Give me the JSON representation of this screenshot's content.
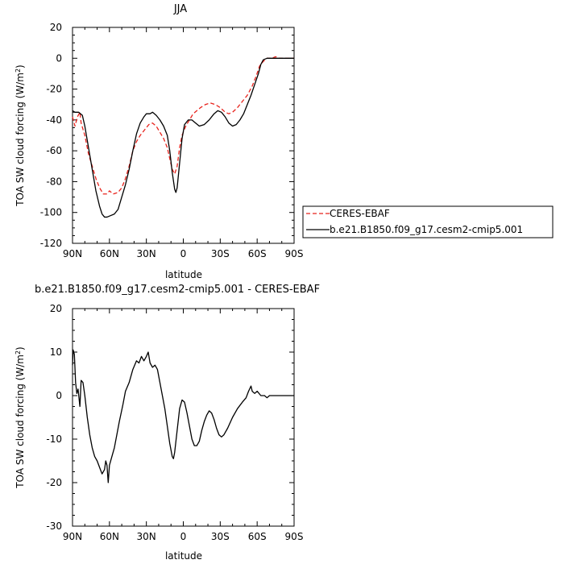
{
  "chart_data": [
    {
      "type": "line",
      "title": "JJA",
      "xlabel": "latitude",
      "ylabel": "TOA SW cloud forcing (W/m²)",
      "ylabel_main": "TOA SW cloud forcing (W/m",
      "ylabel_sup": "2",
      "ylabel_end": ")",
      "xlim": [
        90,
        -90
      ],
      "ylim": [
        -120,
        20
      ],
      "xticks": [
        {
          "value": 90,
          "label": "90N"
        },
        {
          "value": 60,
          "label": "60N"
        },
        {
          "value": 30,
          "label": "30N"
        },
        {
          "value": 0,
          "label": "0"
        },
        {
          "value": -30,
          "label": "30S"
        },
        {
          "value": -60,
          "label": "60S"
        },
        {
          "value": -90,
          "label": "90S"
        }
      ],
      "yticks": [
        20,
        0,
        -20,
        -40,
        -60,
        -80,
        -100,
        -120
      ],
      "legend_position": "right",
      "series": [
        {
          "name": "CERES-EBAF",
          "color": "#e8231c",
          "dash": "dashed",
          "points": [
            [
              90,
              -38
            ],
            [
              88,
              -44
            ],
            [
              86,
              -38
            ],
            [
              84,
              -35
            ],
            [
              83,
              -42
            ],
            [
              80,
              -50
            ],
            [
              77,
              -62
            ],
            [
              74,
              -70
            ],
            [
              71,
              -78
            ],
            [
              68,
              -84
            ],
            [
              65,
              -88
            ],
            [
              62,
              -88
            ],
            [
              60,
              -86
            ],
            [
              57,
              -88
            ],
            [
              53,
              -87
            ],
            [
              50,
              -84
            ],
            [
              47,
              -78
            ],
            [
              44,
              -70
            ],
            [
              41,
              -60
            ],
            [
              38,
              -54
            ],
            [
              35,
              -50
            ],
            [
              32,
              -47
            ],
            [
              28,
              -43
            ],
            [
              25,
              -42
            ],
            [
              22,
              -44
            ],
            [
              19,
              -48
            ],
            [
              16,
              -52
            ],
            [
              13,
              -58
            ],
            [
              11,
              -65
            ],
            [
              9,
              -72
            ],
            [
              7,
              -75
            ],
            [
              5,
              -70
            ],
            [
              3,
              -58
            ],
            [
              1,
              -50
            ],
            [
              -2,
              -44
            ],
            [
              -5,
              -40
            ],
            [
              -8,
              -36
            ],
            [
              -11,
              -34
            ],
            [
              -14,
              -32
            ],
            [
              -18,
              -30
            ],
            [
              -22,
              -29
            ],
            [
              -26,
              -30
            ],
            [
              -30,
              -32
            ],
            [
              -34,
              -35
            ],
            [
              -37,
              -36
            ],
            [
              -40,
              -35
            ],
            [
              -44,
              -32
            ],
            [
              -48,
              -28
            ],
            [
              -52,
              -24
            ],
            [
              -56,
              -18
            ],
            [
              -59,
              -12
            ],
            [
              -62,
              -5
            ],
            [
              -65,
              -2
            ],
            [
              -68,
              0
            ],
            [
              -72,
              0
            ],
            [
              -75,
              1
            ],
            [
              -78,
              0
            ],
            [
              -82,
              0
            ],
            [
              -86,
              0
            ],
            [
              -90,
              0
            ]
          ]
        },
        {
          "name": "b.e21.B1850.f09_g17.cesm2-cmip5.001",
          "color": "#000000",
          "dash": "solid",
          "points": [
            [
              90,
              -34
            ],
            [
              88,
              -35
            ],
            [
              85,
              -35
            ],
            [
              82,
              -37
            ],
            [
              80,
              -44
            ],
            [
              77,
              -58
            ],
            [
              74,
              -72
            ],
            [
              71,
              -86
            ],
            [
              68,
              -96
            ],
            [
              66,
              -101
            ],
            [
              64,
              -103
            ],
            [
              62,
              -103
            ],
            [
              59,
              -102
            ],
            [
              56,
              -101
            ],
            [
              53,
              -98
            ],
            [
              50,
              -90
            ],
            [
              47,
              -82
            ],
            [
              44,
              -72
            ],
            [
              41,
              -60
            ],
            [
              38,
              -49
            ],
            [
              35,
              -42
            ],
            [
              32,
              -38
            ],
            [
              30,
              -36
            ],
            [
              27,
              -36
            ],
            [
              25,
              -35
            ],
            [
              22,
              -37
            ],
            [
              19,
              -40
            ],
            [
              16,
              -44
            ],
            [
              13,
              -50
            ],
            [
              11,
              -60
            ],
            [
              9,
              -74
            ],
            [
              7,
              -85
            ],
            [
              6,
              -87
            ],
            [
              5,
              -84
            ],
            [
              3,
              -68
            ],
            [
              1,
              -52
            ],
            [
              -1,
              -43
            ],
            [
              -4,
              -40
            ],
            [
              -7,
              -40
            ],
            [
              -10,
              -42
            ],
            [
              -13,
              -44
            ],
            [
              -17,
              -43
            ],
            [
              -21,
              -40
            ],
            [
              -25,
              -36
            ],
            [
              -28,
              -34
            ],
            [
              -31,
              -35
            ],
            [
              -34,
              -38
            ],
            [
              -37,
              -42
            ],
            [
              -40,
              -44
            ],
            [
              -43,
              -43
            ],
            [
              -46,
              -40
            ],
            [
              -49,
              -36
            ],
            [
              -52,
              -30
            ],
            [
              -55,
              -24
            ],
            [
              -58,
              -17
            ],
            [
              -61,
              -10
            ],
            [
              -63,
              -4
            ],
            [
              -65,
              -1
            ],
            [
              -68,
              0
            ],
            [
              -72,
              0
            ],
            [
              -76,
              0
            ],
            [
              -80,
              0
            ],
            [
              -85,
              0
            ],
            [
              -90,
              0
            ]
          ]
        }
      ]
    },
    {
      "type": "line",
      "title": "b.e21.B1850.f09_g17.cesm2-cmip5.001 - CERES-EBAF",
      "xlabel": "latitude",
      "ylabel": "TOA SW cloud forcing (W/m²)",
      "ylabel_main": "TOA SW cloud forcing (W/m",
      "ylabel_sup": "2",
      "ylabel_end": ")",
      "xlim": [
        90,
        -90
      ],
      "ylim": [
        -30,
        20
      ],
      "xticks": [
        {
          "value": 90,
          "label": "90N"
        },
        {
          "value": 60,
          "label": "60N"
        },
        {
          "value": 30,
          "label": "30N"
        },
        {
          "value": 0,
          "label": "0"
        },
        {
          "value": -30,
          "label": "30S"
        },
        {
          "value": -60,
          "label": "60S"
        },
        {
          "value": -90,
          "label": "90S"
        }
      ],
      "yticks": [
        20,
        10,
        0,
        -10,
        -20,
        -30
      ],
      "series": [
        {
          "color": "#000000",
          "dash": "solid",
          "points": [
            [
              90,
              7
            ],
            [
              89.5,
              10.5
            ],
            [
              88.5,
              9.5
            ],
            [
              87.5,
              3
            ],
            [
              86.5,
              0.5
            ],
            [
              85.5,
              1.5
            ],
            [
              84,
              -2.5
            ],
            [
              83,
              3.5
            ],
            [
              81.5,
              3
            ],
            [
              80,
              0
            ],
            [
              78,
              -5
            ],
            [
              76,
              -9
            ],
            [
              74,
              -12
            ],
            [
              72,
              -14
            ],
            [
              70,
              -15
            ],
            [
              68,
              -16.5
            ],
            [
              66,
              -18
            ],
            [
              64,
              -17
            ],
            [
              63,
              -15
            ],
            [
              62,
              -16
            ],
            [
              61,
              -20
            ],
            [
              60,
              -16
            ],
            [
              58,
              -14
            ],
            [
              56,
              -12
            ],
            [
              54,
              -9
            ],
            [
              52,
              -6
            ],
            [
              49,
              -2
            ],
            [
              47,
              1
            ],
            [
              44,
              3
            ],
            [
              41,
              6
            ],
            [
              38,
              8
            ],
            [
              36,
              7.5
            ],
            [
              34,
              9
            ],
            [
              32,
              8
            ],
            [
              30,
              9
            ],
            [
              28.5,
              10
            ],
            [
              27,
              7.5
            ],
            [
              25,
              6.5
            ],
            [
              23,
              7
            ],
            [
              21,
              6
            ],
            [
              19,
              3
            ],
            [
              17,
              0
            ],
            [
              15,
              -3
            ],
            [
              13,
              -7
            ],
            [
              11,
              -11
            ],
            [
              9,
              -14
            ],
            [
              8,
              -14.5
            ],
            [
              7,
              -13
            ],
            [
              5,
              -8
            ],
            [
              3,
              -3
            ],
            [
              1,
              -1
            ],
            [
              -1,
              -1.5
            ],
            [
              -3,
              -4
            ],
            [
              -5,
              -7
            ],
            [
              -7,
              -10
            ],
            [
              -9,
              -11.5
            ],
            [
              -11,
              -11.5
            ],
            [
              -13,
              -10.5
            ],
            [
              -15,
              -8
            ],
            [
              -17,
              -6
            ],
            [
              -19,
              -4.5
            ],
            [
              -21,
              -3.5
            ],
            [
              -23,
              -4
            ],
            [
              -25,
              -5.5
            ],
            [
              -27,
              -7.5
            ],
            [
              -29,
              -9
            ],
            [
              -31,
              -9.5
            ],
            [
              -33,
              -9
            ],
            [
              -36,
              -7.5
            ],
            [
              -40,
              -5
            ],
            [
              -44,
              -3
            ],
            [
              -48,
              -1.5
            ],
            [
              -51,
              -0.5
            ],
            [
              -53,
              1
            ],
            [
              -55,
              2.2
            ],
            [
              -56,
              1
            ],
            [
              -58,
              0.5
            ],
            [
              -60,
              1
            ],
            [
              -63,
              0
            ],
            [
              -66,
              0
            ],
            [
              -68,
              -0.5
            ],
            [
              -70,
              0
            ],
            [
              -72,
              0
            ],
            [
              -76,
              0
            ],
            [
              -80,
              0
            ],
            [
              -85,
              0
            ],
            [
              -90,
              0
            ]
          ]
        }
      ]
    }
  ]
}
